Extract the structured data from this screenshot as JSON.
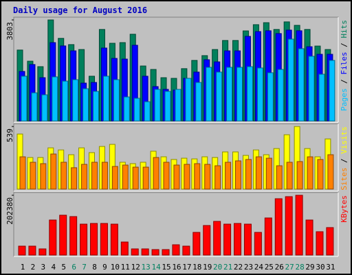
{
  "chart_data": [
    {
      "type": "bar",
      "title": "Daily usage for August 2016",
      "ylim": [
        0,
        3803
      ],
      "yticks": [
        3803
      ],
      "legend_separator": "/",
      "series": [
        {
          "name": "Hits",
          "color": "#00805c",
          "values": [
            2670,
            2250,
            2045,
            3803,
            3110,
            2875,
            2690,
            1685,
            3445,
            2925,
            2950,
            3265,
            2070,
            1940,
            1630,
            1605,
            1970,
            2280,
            2460,
            2690,
            3030,
            3030,
            3390,
            3625,
            3700,
            3445,
            3730,
            3600,
            3445,
            2820,
            2690
          ]
        },
        {
          "name": "Files",
          "color": "#0000ff",
          "values": [
            1865,
            2125,
            1630,
            2950,
            2825,
            2640,
            1425,
            1450,
            2745,
            2355,
            2330,
            2850,
            1685,
            1295,
            1190,
            1165,
            1605,
            1840,
            2305,
            2225,
            2640,
            2640,
            3185,
            3365,
            3395,
            3290,
            3420,
            3395,
            2795,
            2510,
            2510
          ]
        },
        {
          "name": "Pages",
          "color": "#00c0ff",
          "values": [
            1685,
            1060,
            985,
            1660,
            1500,
            1555,
            1215,
            1115,
            1685,
            1555,
            905,
            855,
            725,
            1190,
            1115,
            1190,
            1605,
            1450,
            2020,
            1840,
            2020,
            2020,
            2045,
            1995,
            1815,
            1940,
            3080,
            2720,
            2435,
            1760,
            2280
          ]
        }
      ]
    },
    {
      "type": "bar",
      "ylim": [
        0,
        539
      ],
      "yticks": [
        539
      ],
      "legend_separator": "/",
      "series": [
        {
          "name": "Visits",
          "color": "#ffff00",
          "values": [
            474,
            272,
            272,
            355,
            337,
            296,
            355,
            314,
            367,
            385,
            231,
            219,
            231,
            326,
            278,
            255,
            266,
            260,
            278,
            272,
            320,
            320,
            290,
            337,
            296,
            349,
            468,
            539,
            349,
            278,
            432
          ]
        },
        {
          "name": "Sites",
          "color": "#ff8000",
          "values": [
            278,
            231,
            219,
            302,
            231,
            184,
            213,
            231,
            231,
            195,
            207,
            189,
            189,
            272,
            231,
            207,
            213,
            219,
            213,
            201,
            231,
            243,
            255,
            278,
            266,
            201,
            231,
            237,
            278,
            255,
            296
          ]
        }
      ]
    },
    {
      "type": "bar",
      "ylim": [
        0,
        202380
      ],
      "yticks": [
        202380
      ],
      "categories": [
        "1",
        "2",
        "3",
        "4",
        "5",
        "6",
        "7",
        "8",
        "9",
        "10",
        "11",
        "12",
        "13",
        "14",
        "15",
        "16",
        "17",
        "18",
        "19",
        "20",
        "21",
        "22",
        "23",
        "24",
        "25",
        "26",
        "27",
        "28",
        "29",
        "30",
        "31"
      ],
      "category_colors": [
        "#000000",
        "#000000",
        "#000000",
        "#000000",
        "#000000",
        "#008060",
        "#008060",
        "#000000",
        "#000000",
        "#000000",
        "#000000",
        "#000000",
        "#008060",
        "#008060",
        "#000000",
        "#000000",
        "#000000",
        "#000000",
        "#000000",
        "#008060",
        "#008060",
        "#000000",
        "#000000",
        "#000000",
        "#000000",
        "#000000",
        "#008060",
        "#008060",
        "#000000",
        "#000000",
        "#000000"
      ],
      "series": [
        {
          "name": "KBytes",
          "color": "#ff0000",
          "values": [
            30240,
            30240,
            20930,
            118630,
            134910,
            130260,
            104670,
            107000,
            107000,
            104670,
            44190,
            20930,
            20930,
            18610,
            18610,
            34890,
            30240,
            76760,
            100020,
            113970,
            104670,
            107000,
            104670,
            76760,
            125600,
            190730,
            197710,
            202380,
            118630,
            79080,
            93040
          ]
        }
      ]
    }
  ]
}
